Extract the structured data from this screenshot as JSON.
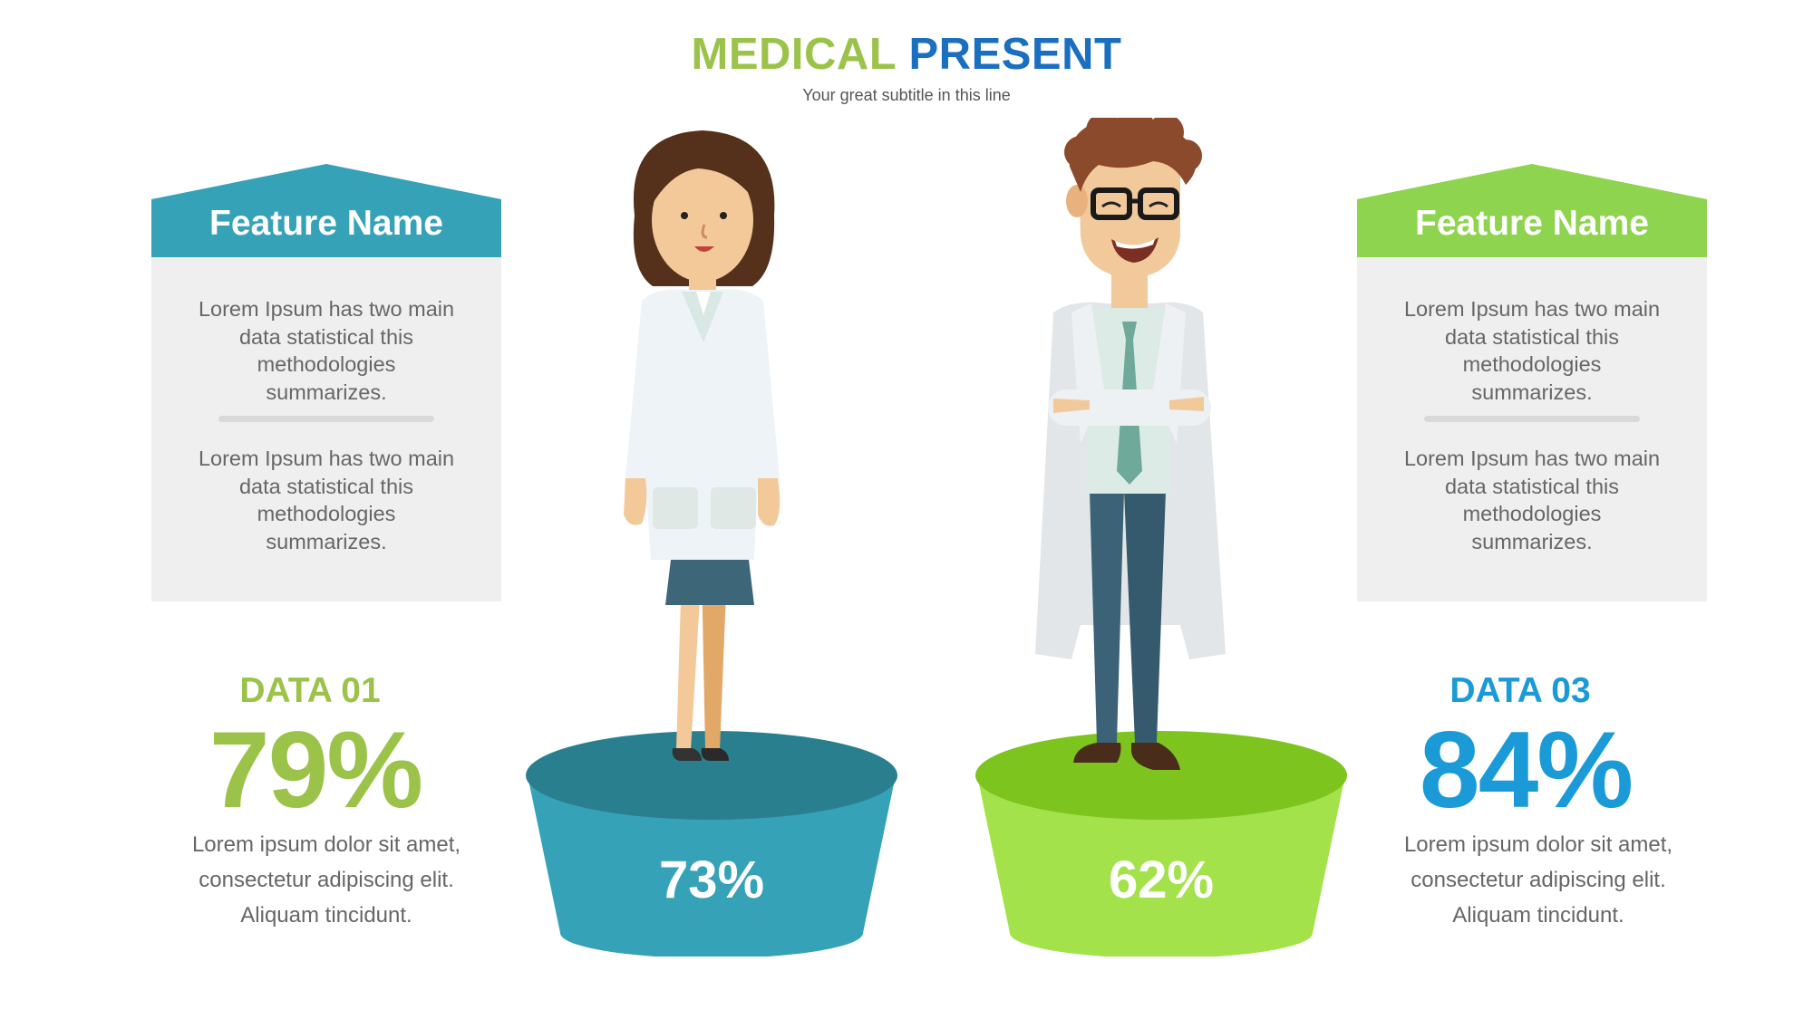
{
  "header": {
    "title_part1": "MEDICAL",
    "title_part2": "PRESENT",
    "subtitle": "Your great subtitle in this line"
  },
  "feature_left": {
    "title": "Feature Name",
    "paragraph1": "Lorem Ipsum has two main data statistical this methodologies summarizes.",
    "paragraph2": "Lorem Ipsum has two main data statistical this methodologies summarizes.",
    "color": "#36a2b8"
  },
  "feature_right": {
    "title": "Feature Name",
    "paragraph1": "Lorem Ipsum has two main data statistical this methodologies summarizes.",
    "paragraph2": "Lorem Ipsum has two main data statistical this methodologies summarizes.",
    "color": "#8ed44f"
  },
  "data_left": {
    "label": "DATA 01",
    "value": "79%",
    "description": "Lorem ipsum dolor sit amet, consectetur adipiscing elit. Aliquam tincidunt.",
    "color": "#9bc34a"
  },
  "data_right": {
    "label": "DATA 03",
    "value": "84%",
    "description": "Lorem ipsum dolor sit amet, consectetur adipiscing elit. Aliquam tincidunt.",
    "color": "#1a9ad6"
  },
  "pedestal_left": {
    "value": "73%",
    "color": "#36a2b8",
    "top_color": "#2a7f8e"
  },
  "pedestal_right": {
    "value": "62%",
    "color": "#a3e24a",
    "top_color": "#7dc41f"
  },
  "figures": {
    "left": "female-doctor",
    "right": "male-doctor"
  }
}
